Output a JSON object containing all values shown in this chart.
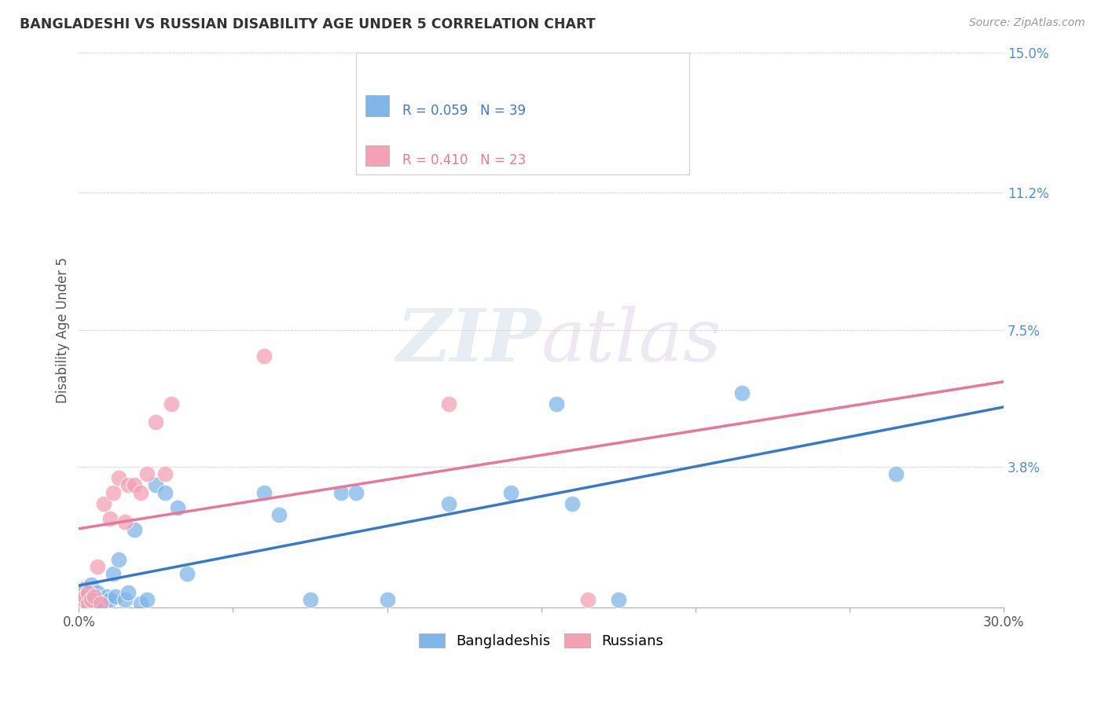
{
  "title": "BANGLADESHI VS RUSSIAN DISABILITY AGE UNDER 5 CORRELATION CHART",
  "source": "Source: ZipAtlas.com",
  "ylabel": "Disability Age Under 5",
  "x_min": 0.0,
  "x_max": 0.3,
  "y_min": 0.0,
  "y_max": 0.15,
  "y_ticks": [
    0.0,
    0.038,
    0.075,
    0.112,
    0.15
  ],
  "y_tick_labels": [
    "",
    "3.8%",
    "7.5%",
    "11.2%",
    "15.0%"
  ],
  "bangladeshi_color": "#7EB6E8",
  "bangladeshi_line_color": "#3A78C9",
  "russian_color": "#F4A0B5",
  "russian_line_color": "#E8789A",
  "bangladeshi_R": "0.059",
  "bangladeshi_N": "39",
  "russian_R": "0.410",
  "russian_N": "23",
  "legend_label_bangladeshi": "Bangladeshis",
  "legend_label_russian": "Russians",
  "watermark_zip": "ZIP",
  "watermark_atlas": "atlas",
  "bangladeshi_x": [
    0.001,
    0.002,
    0.002,
    0.003,
    0.003,
    0.004,
    0.004,
    0.005,
    0.005,
    0.006,
    0.007,
    0.008,
    0.009,
    0.01,
    0.011,
    0.012,
    0.013,
    0.015,
    0.016,
    0.018,
    0.02,
    0.022,
    0.025,
    0.028,
    0.032,
    0.035,
    0.06,
    0.065,
    0.075,
    0.085,
    0.09,
    0.1,
    0.12,
    0.14,
    0.155,
    0.16,
    0.175,
    0.215,
    0.265
  ],
  "bangladeshi_y": [
    0.003,
    0.002,
    0.005,
    0.001,
    0.004,
    0.002,
    0.006,
    0.003,
    0.001,
    0.004,
    0.002,
    0.001,
    0.003,
    0.002,
    0.009,
    0.003,
    0.013,
    0.002,
    0.004,
    0.021,
    0.001,
    0.002,
    0.033,
    0.031,
    0.027,
    0.009,
    0.031,
    0.025,
    0.002,
    0.031,
    0.031,
    0.002,
    0.028,
    0.031,
    0.055,
    0.028,
    0.002,
    0.058,
    0.036
  ],
  "russian_x": [
    0.001,
    0.002,
    0.003,
    0.003,
    0.004,
    0.005,
    0.006,
    0.007,
    0.008,
    0.01,
    0.011,
    0.013,
    0.015,
    0.016,
    0.018,
    0.02,
    0.022,
    0.025,
    0.028,
    0.03,
    0.06,
    0.12,
    0.165
  ],
  "russian_y": [
    0.002,
    0.003,
    0.001,
    0.004,
    0.002,
    0.003,
    0.011,
    0.001,
    0.028,
    0.024,
    0.031,
    0.035,
    0.023,
    0.033,
    0.033,
    0.031,
    0.036,
    0.05,
    0.036,
    0.055,
    0.068,
    0.055,
    0.002
  ]
}
